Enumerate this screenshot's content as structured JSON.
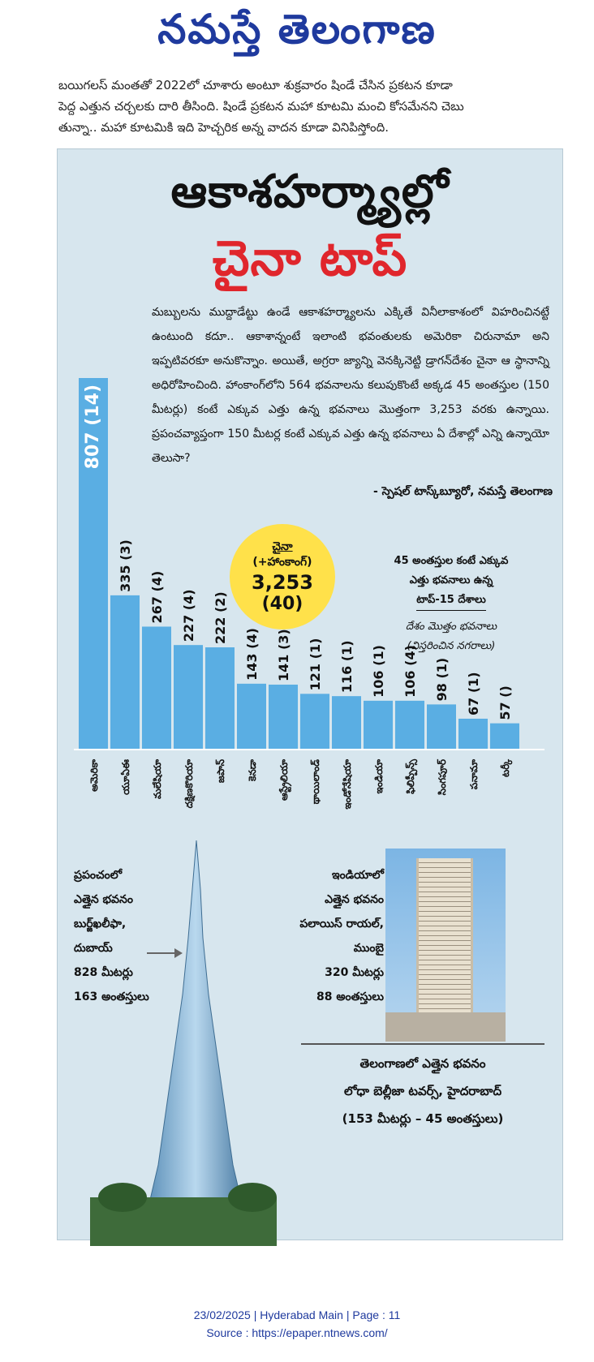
{
  "masthead": "నమస్తే తెలంగాణ",
  "intro": [
    "బయిగలస్ మంతతో 2022లో చూశారు అంటూ శుక్రవారం షిండే చేసిన ప్రకటన కూడా",
    "పెద్ద ఎత్తున చర్చలకు దారి తీసింది. షిండే ప్రకటన మహా కూటమి మంచి కోసమేనని చెబు",
    "తున్నా.. మహా కూటమికి ఇది హెచ్చరిక అన్న వాదన కూడా వినిపిస్తోంది."
  ],
  "headline": {
    "line1": "ఆకాశహర్మ్యాల్లో",
    "line2": "చైనా టాప్"
  },
  "story": "మబ్బులను ముద్దాడేట్టు ఉండే ఆకాశహర్మ్యాలను ఎక్కితే వినీలాకాశంలో విహరించినట్టే ఉంటుంది కదూ.. ఆకాశాన్నంటే ఇలాంటి భవంతులకు అమెరికా చిరునామా అని ఇప్పటివరకూ అనుకొన్నాం. అయితే, అగ్రరా జ్యాన్ని వెనక్కినెట్టి డ్రాగన్‌దేశం చైనా ఆ స్థానాన్ని అధిరోహించింది. హాంకాంగ్‌లోని 564 భవనాలను కలుపుకొంటే అక్కడ 45 అంతస్తుల (150 మీటర్లు) కంటే ఎక్కువ ఎత్తు ఉన్న భవనాలు మొత్తంగా 3,253 వరకు ఉన్నాయి. ప్రపంచవ్యాప్తంగా 150 మీటర్ల కంటే ఎక్కువ ఎత్తు ఉన్న భవనాలు ఏ దేశాల్లో ఎన్ని ఉన్నాయో తెలుసా?",
  "byline": "- స్పెషల్ టాస్క్‌బ్యూరో, నమస్తే తెలంగాణ",
  "badge": {
    "country": "చైనా",
    "note": "(+హాంకాంగ్)",
    "total": "3,253",
    "cities": "(40)"
  },
  "legend": {
    "line1": "45 అంతస్తుల కంటే ఎక్కువ",
    "line2": "ఎత్తు భవనాలు ఉన్న",
    "line3": "టాప్-15 దేశాలు",
    "line4": "దేశం మొత్తం భవనాలు",
    "line5": "(విస్తరించిన నగరాలు)"
  },
  "chart_data": {
    "type": "bar",
    "title": "45 అంతస్తుల కంటే ఎక్కువ ఎత్తు భవనాలు ఉన్న టాప్-15 దేశాలు",
    "categories": [
      "అమెరికా",
      "యూఏఈ",
      "మలేషియా",
      "దక్షిణకొరియా",
      "జపాన్",
      "కెనడా",
      "ఆస్ట్రేలియా",
      "థాయిలాండ్",
      "ఇండోనేషియా",
      "ఇండియా",
      "ఫిలిప్పీన్స్",
      "సింగపూర్",
      "పనామా",
      "టర్కీ"
    ],
    "values": [
      807,
      335,
      267,
      227,
      222,
      143,
      141,
      121,
      116,
      106,
      106,
      98,
      67,
      57
    ],
    "value_labels": [
      "807 (14)",
      "335 (3)",
      "267 (4)",
      "227 (4)",
      "222 (2)",
      "143 (4)",
      "141 (3)",
      "121 (1)",
      "116 (1)",
      "106 (1)",
      "106 (4)",
      "98 (1)",
      "67 (1)",
      "57 ()"
    ],
    "bar_color": "#5aaee3"
  },
  "world": {
    "line1": "ప్రపంచంలో",
    "line2": "ఎత్తైన భవనం",
    "line3": "బుర్జ్‌ఖలీఫా,",
    "line4": "దుబాయ్",
    "line5": "828 మీటర్లు",
    "line6": "163 అంతస్తులు"
  },
  "india": {
    "line1": "ఇండియాలో",
    "line2": "ఎత్తైన భవనం",
    "line3": "పలాయిస్ రాయల్,",
    "line4": "ముంబై",
    "line5": "320 మీటర్లు",
    "line6": "88 అంతస్తులు"
  },
  "telangana": {
    "line1": "తెలంగాణలో ఎత్తైన భవనం",
    "line2": "లోధా బెల్లీజా టవర్స్, హైదరాబాద్",
    "line3": "(153 మీటర్లు – 45 అంతస్తులు)"
  },
  "footer": {
    "line1": "23/02/2025 | Hyderabad Main | Page : 11",
    "line2": "Source : https://epaper.ntnews.com/"
  }
}
